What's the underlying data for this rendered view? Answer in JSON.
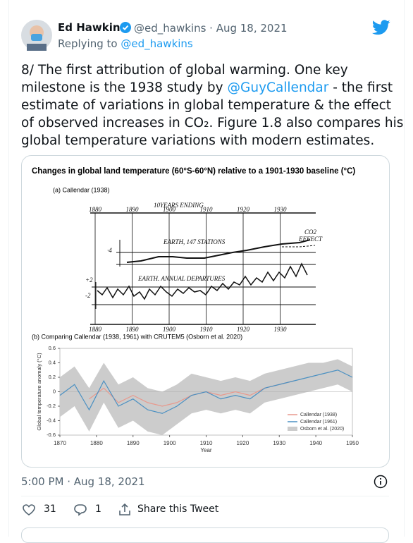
{
  "author": {
    "name": "Ed Hawkins",
    "meta": "@ed_hawkins · Aug 18, 2021",
    "reply_prefix": "Replying to",
    "reply_to": "@ed_hawkins"
  },
  "text": {
    "line1": "8/ The first attribution of global warming. One key",
    "line2a": "milestone is the 1938 study by ",
    "mention": "@GuyCallendar",
    "line2b": " - the first",
    "line3": "estimate of variations in global temperature & the effect",
    "line4": "of observed increases in CO₂. Figure 1.8 also compares his",
    "line5": "global temperature variations with modern estimates."
  },
  "figure": {
    "title": "Changes in global land temperature (60°S-60°N) relative to a 1901-1930 baseline (°C)",
    "panel_a": {
      "title": "(a) Callendar (1938)",
      "axis_label": "10YEARS ENDING",
      "years": [
        1880,
        1890,
        1900,
        1910,
        1920,
        1930
      ],
      "stations": "EARTH, 147 STATIONS",
      "departures": "EARTH. ANNUAL DEPARTURES",
      "co2": "CO2",
      "effect": "EFFECT",
      "scale_top": "·4",
      "scale_plus": "+2",
      "scale_minus": "-2"
    }
  },
  "chart_data": {
    "type": "line",
    "title": "(b) Comparing Callendar (1938, 1961) with CRUTEM5 (Osborn et al. 2020)",
    "xlabel": "Year",
    "ylabel": "Global temperature anomaly (°C)",
    "x": [
      1870,
      1874,
      1878,
      1882,
      1886,
      1890,
      1894,
      1898,
      1902,
      1906,
      1910,
      1914,
      1918,
      1922,
      1926,
      1930,
      1934,
      1938,
      1942,
      1946,
      1950
    ],
    "series": [
      {
        "name": "Callendar (1938)",
        "color": "#e8998d",
        "values": [
          null,
          null,
          -0.1,
          0.05,
          -0.15,
          -0.05,
          -0.15,
          -0.2,
          -0.15,
          -0.05,
          0.0,
          -0.05,
          0.0,
          -0.05,
          0.05,
          0.1,
          0.15,
          null,
          null,
          null,
          null
        ]
      },
      {
        "name": "Callendar (1961)",
        "color": "#4a90c2",
        "values": [
          -0.05,
          0.1,
          -0.25,
          0.15,
          -0.2,
          -0.1,
          -0.25,
          -0.3,
          -0.2,
          -0.05,
          0.0,
          -0.1,
          -0.05,
          -0.1,
          0.05,
          0.1,
          0.15,
          0.2,
          0.25,
          0.3,
          0.2
        ]
      }
    ],
    "band": {
      "name": "Osborn et al. (2020)",
      "color": "#cccccc",
      "upper": [
        0.2,
        0.35,
        0.05,
        0.4,
        0.1,
        0.2,
        0.05,
        0.0,
        0.1,
        0.25,
        0.2,
        0.15,
        0.2,
        0.15,
        0.25,
        0.3,
        0.35,
        0.4,
        0.4,
        0.45,
        0.35
      ],
      "lower": [
        -0.35,
        -0.2,
        -0.55,
        -0.15,
        -0.5,
        -0.4,
        -0.55,
        -0.6,
        -0.45,
        -0.3,
        -0.25,
        -0.3,
        -0.25,
        -0.3,
        -0.15,
        -0.1,
        -0.05,
        0.0,
        0.05,
        0.1,
        0.0
      ]
    },
    "xlim": [
      1870,
      1950
    ],
    "xticks": [
      1870,
      1880,
      1890,
      1900,
      1910,
      1920,
      1930,
      1940,
      1950
    ],
    "ylim": [
      -0.6,
      0.6
    ],
    "yticks": [
      0.6,
      0.4,
      0.2,
      0,
      -0.2,
      -0.4,
      -0.6
    ]
  },
  "timestamp": "5:00 PM · Aug 18, 2021",
  "likes": 31,
  "replies": 1,
  "share": "Share this Tweet"
}
